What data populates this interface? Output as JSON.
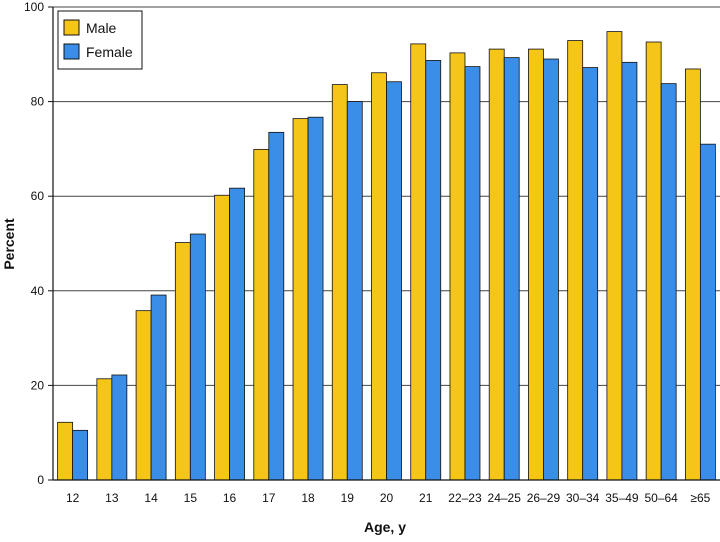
{
  "chart_data": {
    "type": "bar",
    "xlabel": "Age, y",
    "ylabel": "Percent",
    "ylim": [
      0,
      100
    ],
    "yticks": [
      0,
      20,
      40,
      60,
      80,
      100
    ],
    "grid": "horizontal",
    "legend_position": "top-left",
    "categories": [
      "12",
      "13",
      "14",
      "15",
      "16",
      "17",
      "18",
      "19",
      "20",
      "21",
      "22–23",
      "24–25",
      "26–29",
      "30–34",
      "35–49",
      "50–64",
      "≥65"
    ],
    "series": [
      {
        "name": "Male",
        "color": "#F5C518",
        "values": [
          12.2,
          21.4,
          35.8,
          50.2,
          60.2,
          69.9,
          76.4,
          83.6,
          86.1,
          92.2,
          90.3,
          91.1,
          91.1,
          92.9,
          94.8,
          92.6,
          86.9
        ]
      },
      {
        "name": "Female",
        "color": "#3B8EE8",
        "values": [
          10.5,
          22.2,
          39.1,
          52.0,
          61.7,
          73.5,
          76.7,
          80.0,
          84.2,
          88.7,
          87.4,
          89.3,
          89.0,
          87.2,
          88.3,
          83.8,
          71.0
        ]
      }
    ]
  }
}
